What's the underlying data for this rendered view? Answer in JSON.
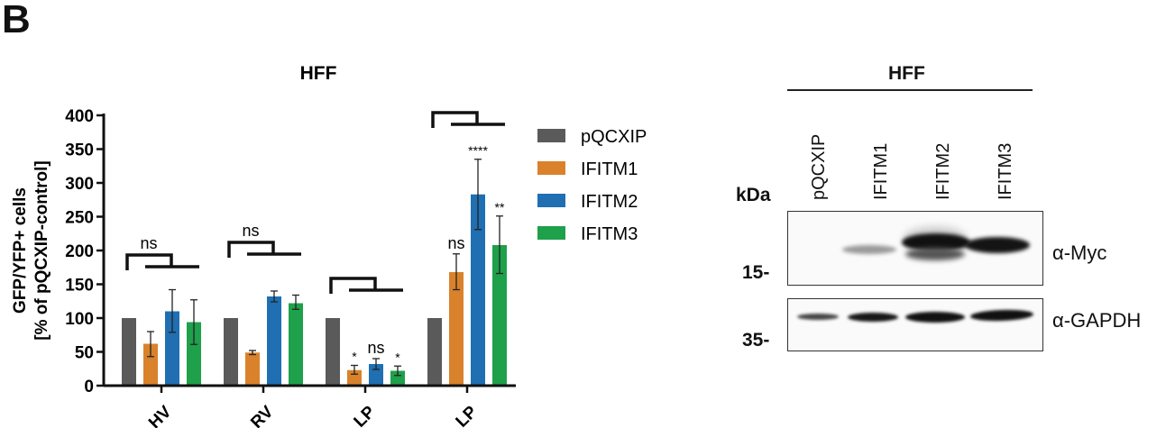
{
  "panel_label": "B",
  "chart_data": {
    "type": "bar",
    "title": "HFF",
    "ylabel_line1": "GFP/YFP+ cells",
    "ylabel_line2": "[% of pQCXIP-control]",
    "xlabel": "",
    "ylim": [
      0,
      400
    ],
    "yticks": [
      0,
      50,
      100,
      150,
      200,
      250,
      300,
      350,
      400
    ],
    "categories": [
      "…HV",
      "…RV",
      "…LP",
      "…LP"
    ],
    "series": [
      {
        "name": "pQCXIP",
        "color": "#5a5a5a",
        "values": [
          100,
          100,
          100,
          100
        ],
        "err_low": [
          null,
          null,
          null,
          null
        ],
        "err_high": [
          null,
          null,
          null,
          null
        ]
      },
      {
        "name": "IFITM1",
        "color": "#d9822b",
        "values": [
          62,
          49,
          23,
          168
        ],
        "err_low": [
          43,
          46,
          17,
          142
        ],
        "err_high": [
          80,
          52,
          30,
          195
        ]
      },
      {
        "name": "IFITM2",
        "color": "#1f6fb2",
        "values": [
          110,
          132,
          32,
          283
        ],
        "err_low": [
          79,
          124,
          24,
          231
        ],
        "err_high": [
          142,
          140,
          40,
          335
        ]
      },
      {
        "name": "IFITM3",
        "color": "#1fa04a",
        "values": [
          94,
          122,
          22,
          208
        ],
        "err_low": [
          61,
          113,
          15,
          166
        ],
        "err_high": [
          127,
          134,
          29,
          251
        ]
      }
    ],
    "significance": [
      {
        "group": 0,
        "bracket_label": "ns",
        "bar_labels": [
          "",
          "",
          ""
        ]
      },
      {
        "group": 1,
        "bracket_label": "ns",
        "bar_labels": [
          "",
          "",
          ""
        ]
      },
      {
        "group": 2,
        "bracket_label": "",
        "bar_labels": [
          "*",
          "ns",
          "*"
        ]
      },
      {
        "group": 3,
        "bracket_label": "",
        "bar_labels": [
          "ns",
          "****",
          "**"
        ]
      }
    ],
    "grid": false,
    "legend_position": "right"
  },
  "legend": [
    {
      "label": "pQCXIP",
      "color": "#5a5a5a"
    },
    {
      "label": "IFITM1",
      "color": "#d9822b"
    },
    {
      "label": "IFITM2",
      "color": "#1f6fb2"
    },
    {
      "label": "IFITM3",
      "color": "#1fa04a"
    }
  ],
  "blot": {
    "title": "HFF",
    "lanes": [
      "pQCXIP",
      "IFITM1",
      "IFITM2",
      "IFITM3"
    ],
    "kda_label": "kDa",
    "markers": [
      "15-",
      "35-"
    ],
    "antibodies": [
      "α-Myc",
      "α-GAPDH"
    ]
  }
}
